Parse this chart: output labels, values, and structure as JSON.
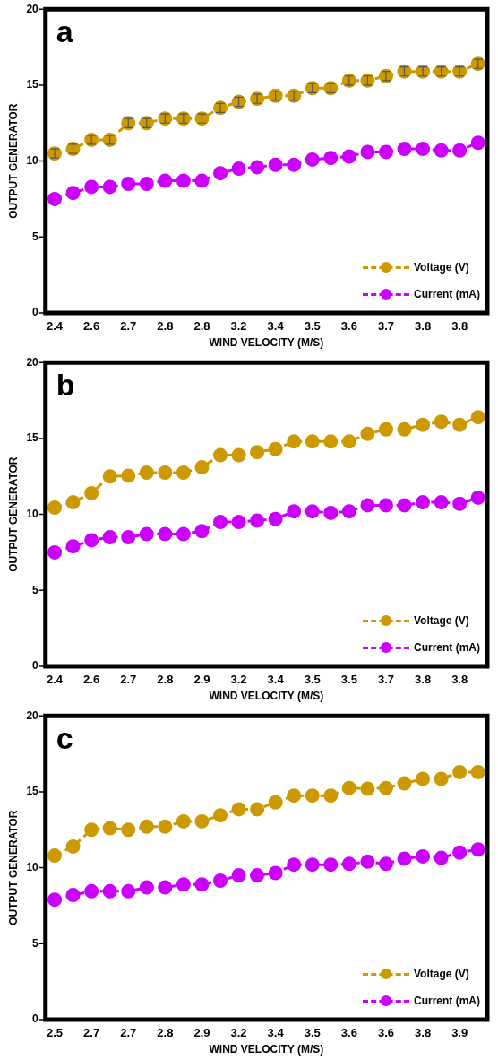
{
  "chart_data": [
    {
      "type": "line",
      "annotations": [
        "a"
      ],
      "xlabel": "WIND VELOCITY (M/S)",
      "ylabel": "OUTPUT GENERATOR",
      "categories": [
        "2.4",
        null,
        "2.6",
        null,
        "2.7",
        null,
        "2.8",
        null,
        "2.8",
        null,
        "3.2",
        null,
        "3.4",
        null,
        "3.5",
        null,
        "3.6",
        null,
        "3.7",
        null,
        "3.8",
        null,
        "3.8",
        null
      ],
      "series": [
        {
          "name": "Voltage (V)",
          "color": "#cc9900",
          "values": [
            10.5,
            10.8,
            11.4,
            11.4,
            12.5,
            12.5,
            12.8,
            12.8,
            12.8,
            13.5,
            13.9,
            14.1,
            14.3,
            14.3,
            14.8,
            14.8,
            15.3,
            15.3,
            15.6,
            15.9,
            15.9,
            15.9,
            15.9,
            16.4
          ],
          "errors": [
            0.3,
            0.3,
            0.3,
            0.3,
            0.3,
            0.3,
            0.3,
            0.3,
            0.3,
            0.3,
            0.3,
            0.3,
            0.3,
            0.3,
            0.3,
            0.3,
            0.3,
            0.3,
            0.3,
            0.3,
            0.3,
            0.3,
            0.3,
            0.3
          ]
        },
        {
          "name": "Current (mA)",
          "color": "#cc00ff",
          "values": [
            7.5,
            7.9,
            8.3,
            8.3,
            8.5,
            8.5,
            8.7,
            8.7,
            8.7,
            9.2,
            9.5,
            9.6,
            9.75,
            9.75,
            10.1,
            10.2,
            10.3,
            10.6,
            10.6,
            10.8,
            10.8,
            10.7,
            10.7,
            11.2
          ]
        }
      ],
      "ylim": [
        0,
        20
      ],
      "yticks": [
        0,
        5,
        10,
        15,
        20
      ],
      "grid": false,
      "legend": "bottom right",
      "marker": "circle",
      "line_style": "dashed"
    },
    {
      "type": "line",
      "annotations": [
        "b"
      ],
      "xlabel": "WIND VELOCITY (M/S)",
      "ylabel": "OUTPUT GENERATOR",
      "categories": [
        "2.4",
        null,
        "2.6",
        null,
        "2.7",
        null,
        "2.8",
        null,
        "2.9",
        null,
        "3.2",
        null,
        "3.4",
        null,
        "3.5",
        null,
        "3.5",
        null,
        "3.7",
        null,
        "3.8",
        null,
        "3.8",
        null
      ],
      "series": [
        {
          "name": "Voltage (V)",
          "color": "#cc9900",
          "values": [
            10.45,
            10.8,
            11.4,
            12.5,
            12.55,
            12.75,
            12.75,
            12.75,
            13.1,
            13.9,
            13.9,
            14.1,
            14.3,
            14.8,
            14.8,
            14.8,
            14.8,
            15.3,
            15.6,
            15.6,
            15.9,
            16.1,
            15.9,
            16.4
          ]
        },
        {
          "name": "Current (mA)",
          "color": "#cc00ff",
          "values": [
            7.5,
            7.9,
            8.3,
            8.5,
            8.5,
            8.7,
            8.7,
            8.7,
            8.9,
            9.5,
            9.5,
            9.6,
            9.7,
            10.2,
            10.2,
            10.1,
            10.2,
            10.6,
            10.6,
            10.6,
            10.8,
            10.8,
            10.7,
            11.1
          ]
        }
      ],
      "ylim": [
        0,
        20
      ],
      "yticks": [
        0,
        5,
        10,
        15,
        20
      ],
      "grid": false,
      "legend": "bottom right",
      "marker": "circle",
      "line_style": "dashed"
    },
    {
      "type": "line",
      "annotations": [
        "c"
      ],
      "xlabel": "WIND VELOCITY (M/S)",
      "ylabel": "OUTPUT GENERATOR",
      "categories": [
        "2.5",
        null,
        "2.7",
        null,
        "2.7",
        null,
        "2.8",
        null,
        "2.9",
        null,
        "3.2",
        null,
        "3.4",
        null,
        "3.5",
        null,
        "3.6",
        null,
        "3.6",
        null,
        "3.8",
        null,
        "3.9",
        null
      ],
      "series": [
        {
          "name": "Voltage (V)",
          "color": "#cc9900",
          "values": [
            10.8,
            11.4,
            12.5,
            12.6,
            12.5,
            12.7,
            12.7,
            13.05,
            13.05,
            13.45,
            13.85,
            13.85,
            14.3,
            14.75,
            14.75,
            14.75,
            15.25,
            15.2,
            15.25,
            15.55,
            15.85,
            15.85,
            16.3,
            16.3
          ]
        },
        {
          "name": "Current (mA)",
          "color": "#cc00ff",
          "values": [
            7.9,
            8.2,
            8.45,
            8.45,
            8.45,
            8.7,
            8.7,
            8.9,
            8.9,
            9.15,
            9.5,
            9.5,
            9.65,
            10.2,
            10.2,
            10.2,
            10.25,
            10.4,
            10.25,
            10.6,
            10.75,
            10.65,
            11.0,
            11.2
          ]
        }
      ],
      "ylim": [
        0,
        20
      ],
      "yticks": [
        0,
        5,
        10,
        15,
        20
      ],
      "grid": false,
      "legend": "bottom right",
      "marker": "circle",
      "line_style": "dashed"
    }
  ]
}
